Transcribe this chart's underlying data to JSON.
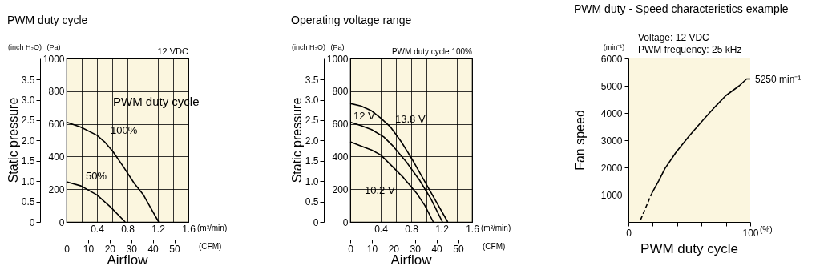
{
  "chart_data": [
    {
      "type": "line",
      "title": "PWM duty cycle",
      "xlabel": "Airflow",
      "y2label": "Static pressure",
      "grid": true,
      "line_style": "solid",
      "annotations": [
        "12 VDC",
        "PWM duty cycle",
        "(inch H₂O)",
        "(Pa)",
        "(m³/min)",
        "(CFM)"
      ],
      "xlim": [
        0,
        1.6
      ],
      "xticks": [
        {
          "value": 0,
          "label": null
        },
        {
          "value": 0.2,
          "label": null
        },
        0.4,
        {
          "value": 0.6,
          "label": null
        },
        0.8,
        {
          "value": 1,
          "label": null
        },
        1.2,
        {
          "value": 1.4,
          "label": null
        },
        1.6
      ],
      "ylim": [
        0,
        1000
      ],
      "yticks": [
        0,
        200,
        400,
        600,
        800,
        1000
      ],
      "y2lim": [
        0,
        4.015
      ],
      "y2ticks": [
        0,
        0.5,
        {
          "value": 1,
          "label": "1.0"
        },
        1.5,
        {
          "value": 2,
          "label": "2.0"
        },
        2.5,
        {
          "value": 3,
          "label": "3.0"
        },
        3.5
      ],
      "x2lim": [
        0,
        56.5
      ],
      "x2ticks": [
        0,
        10,
        20,
        30,
        40,
        50
      ],
      "series": [
        {
          "name": "100%",
          "color": "#000000",
          "x": [
            0,
            0.19,
            0.4,
            0.5,
            0.61,
            0.75,
            0.89,
            1.01,
            1.1,
            1.21
          ],
          "values": [
            610,
            580,
            530,
            490,
            430,
            335,
            235,
            165,
            90,
            0
          ]
        },
        {
          "name": "50%",
          "color": "#000000",
          "x": [
            0,
            0.19,
            0.4,
            0.58,
            0.77
          ],
          "values": [
            245,
            220,
            165,
            90,
            0
          ]
        }
      ]
    },
    {
      "type": "line",
      "title": "Operating voltage range",
      "xlabel": "Airflow",
      "y2label": "Static pressure",
      "grid": true,
      "line_style": "solid",
      "annotations": [
        "PWM duty cycle 100%",
        "(inch H₂O)",
        "(Pa)",
        "(m³/min)",
        "(CFM)"
      ],
      "xlim": [
        0,
        1.6
      ],
      "xticks": [
        {
          "value": 0,
          "label": null
        },
        {
          "value": 0.2,
          "label": null
        },
        0.4,
        {
          "value": 0.6,
          "label": null
        },
        0.8,
        {
          "value": 1,
          "label": null
        },
        1.2,
        {
          "value": 1.4,
          "label": null
        },
        1.6
      ],
      "ylim": [
        0,
        1000
      ],
      "yticks": [
        0,
        200,
        400,
        600,
        800,
        1000
      ],
      "y2lim": [
        0,
        4.015
      ],
      "y2ticks": [
        0,
        0.5,
        {
          "value": 1,
          "label": "1.0"
        },
        1.5,
        {
          "value": 2,
          "label": "2.0"
        },
        2.5,
        {
          "value": 3,
          "label": "3.0"
        },
        3.5
      ],
      "x2lim": [
        0,
        56.5
      ],
      "x2ticks": [
        0,
        10,
        20,
        30,
        40,
        50
      ],
      "series": [
        {
          "name": "13.8 V",
          "color": "#000000",
          "x": [
            0,
            0.14,
            0.28,
            0.4,
            0.53,
            0.67,
            0.81,
            0.95,
            1.09,
            1.28
          ],
          "values": [
            725,
            710,
            680,
            635,
            580,
            490,
            385,
            270,
            155,
            0
          ]
        },
        {
          "name": "12 V",
          "color": "#000000",
          "x": [
            0,
            0.14,
            0.28,
            0.44,
            0.56,
            0.74,
            0.91,
            1.06,
            1.21
          ],
          "values": [
            610,
            590,
            565,
            520,
            465,
            365,
            255,
            140,
            0
          ]
        },
        {
          "name": "10.2 V",
          "color": "#000000",
          "x": [
            0,
            0.14,
            0.28,
            0.4,
            0.53,
            0.7,
            0.88,
            0.98,
            1.09
          ],
          "values": [
            490,
            465,
            440,
            410,
            350,
            270,
            170,
            100,
            0
          ]
        }
      ]
    },
    {
      "type": "line",
      "title": "PWM duty - Speed characteristics example",
      "xlabel": "PWM duty cycle",
      "ylabel": "Fan speed",
      "line_style": "solid",
      "annotations": [
        "Voltage: 12 VDC",
        "PWM frequency: 25 kHz",
        "(min⁻¹)",
        "(%)",
        {
          "text": "5250 min⁻¹",
          "x": 100,
          "y": 5250
        }
      ],
      "xlim": [
        0,
        100
      ],
      "xticks": [
        0,
        {
          "value": 20,
          "label": null
        },
        {
          "value": 40,
          "label": null
        },
        {
          "value": 60,
          "label": null
        },
        {
          "value": 80,
          "label": null
        },
        100
      ],
      "ylim": [
        0,
        6000
      ],
      "yticks": [
        1000,
        2000,
        3000,
        4000,
        5000,
        6000
      ],
      "series": [
        {
          "color": "#000000",
          "line_style": "dashed",
          "x": [
            10,
            19
          ],
          "values": [
            80,
            1030
          ]
        },
        {
          "color": "#000000",
          "x": [
            19,
            25,
            30,
            39,
            50,
            61,
            72,
            80,
            91,
            97,
            100
          ],
          "values": [
            1030,
            1520,
            1960,
            2550,
            3160,
            3730,
            4270,
            4640,
            5000,
            5250,
            5250
          ]
        }
      ]
    }
  ]
}
